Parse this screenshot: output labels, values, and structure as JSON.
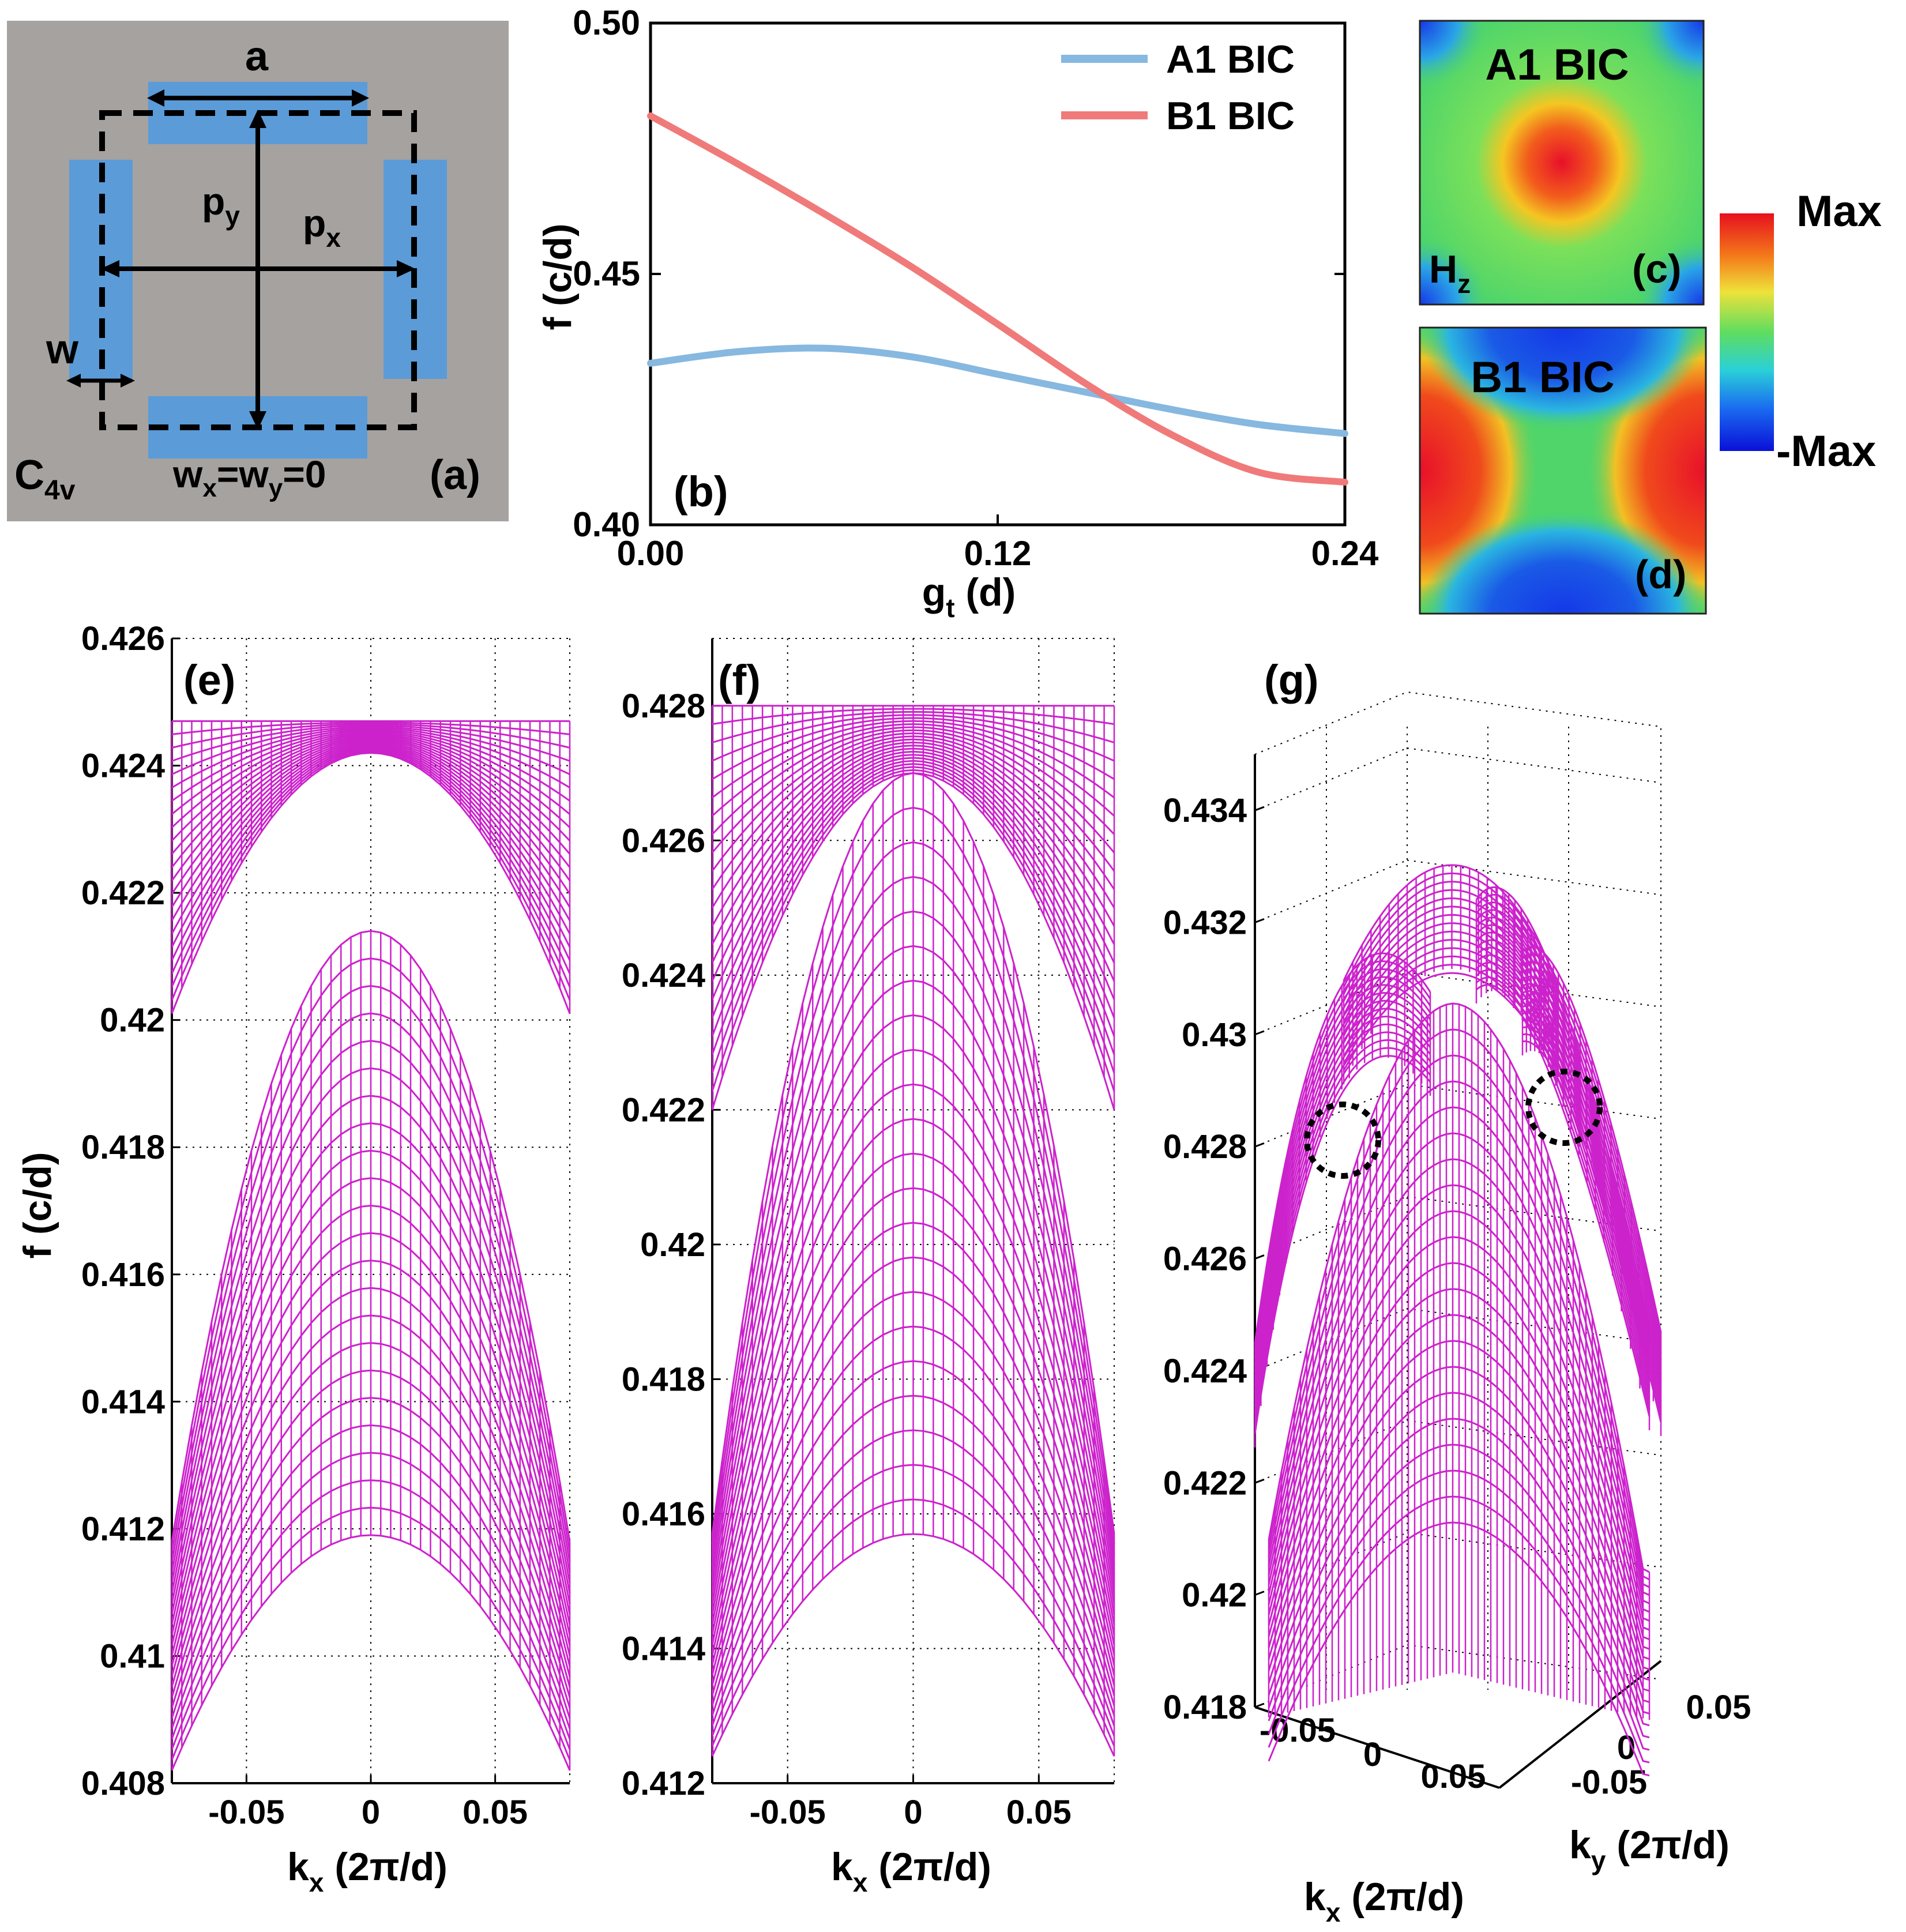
{
  "colors": {
    "a1_line": "#86b8e0",
    "b1_line": "#f07a7a",
    "mesh": "#cc22cc",
    "unit_cell_bg": "#a6a2a0",
    "bar": "#5b9bd8",
    "grid": "#000000"
  },
  "panel_a": {
    "label": "(a)",
    "symmetry_main": "C",
    "symmetry_sub": "4v",
    "condition_w1": "w",
    "condition_s1": "x",
    "condition_mid": "=w",
    "condition_s2": "y",
    "condition_end": "=0",
    "dim_a": "a",
    "dim_py_main": "p",
    "dim_py_sub": "y",
    "dim_px_main": "p",
    "dim_px_sub": "x",
    "dim_w": "w"
  },
  "panel_c": {
    "label": "(c)",
    "title": "A1 BIC",
    "field_main": "H",
    "field_sub": "z"
  },
  "panel_d": {
    "label": "(d)",
    "title": "B1 BIC"
  },
  "colorbar": {
    "max_label": "Max",
    "min_label": "-Max"
  },
  "chart_data": [
    {
      "id": "b",
      "type": "line",
      "label": "(b)",
      "xlabel_main": "g",
      "xlabel_sub": "t",
      "xlabel_rest": " (d)",
      "ylabel": "f (c/d)",
      "xlim": [
        0,
        0.24
      ],
      "ylim": [
        0.4,
        0.5
      ],
      "xticks": [
        "0.00",
        "0.12",
        "0.24"
      ],
      "yticks": [
        "0.40",
        "0.45",
        "0.50"
      ],
      "legend": "top-right",
      "series": [
        {
          "name": "A1 BIC",
          "color": "#86b8e0",
          "x": [
            0,
            0.03,
            0.06,
            0.09,
            0.12,
            0.15,
            0.18,
            0.21,
            0.24
          ],
          "y": [
            0.4322,
            0.4345,
            0.4352,
            0.4335,
            0.43,
            0.4265,
            0.423,
            0.42,
            0.4182
          ]
        },
        {
          "name": "B1 BIC",
          "color": "#f07a7a",
          "x": [
            0,
            0.03,
            0.06,
            0.09,
            0.12,
            0.15,
            0.18,
            0.21,
            0.24
          ],
          "y": [
            0.4815,
            0.472,
            0.462,
            0.4515,
            0.44,
            0.4283,
            0.418,
            0.4105,
            0.4085
          ]
        }
      ]
    },
    {
      "id": "e",
      "type": "surface",
      "label": "(e)",
      "xlabel_main": "k",
      "xlabel_sub": "x",
      "xlabel_rest": " (2π/d)",
      "ylabel": "f (c/d)",
      "xlim": [
        -0.08,
        0.08
      ],
      "ylim": [
        0.408,
        0.426
      ],
      "xticks": [
        "-0.05",
        "0",
        "0.05"
      ],
      "yticks": [
        "0.408",
        "0.41",
        "0.412",
        "0.414",
        "0.416",
        "0.418",
        "0.42",
        "0.422",
        "0.424",
        "0.426"
      ],
      "bands": [
        {
          "name": "lower",
          "center_top": 0.4214,
          "center_bottom": 0.4119,
          "edge_top": 0.4118,
          "edge_bottom": 0.4082
        },
        {
          "name": "upper",
          "center_top": 0.4247,
          "center_bottom": 0.4242,
          "edge_top": 0.4247,
          "edge_bottom": 0.4201
        }
      ]
    },
    {
      "id": "f",
      "type": "surface",
      "label": "(f)",
      "xlabel_main": "k",
      "xlabel_sub": "x",
      "xlabel_rest": " (2π/d)",
      "ylabel": "",
      "xlim": [
        -0.08,
        0.08
      ],
      "ylim": [
        0.412,
        0.429
      ],
      "xticks": [
        "-0.05",
        "0",
        "0.05"
      ],
      "yticks": [
        "0.412",
        "0.414",
        "0.416",
        "0.418",
        "0.42",
        "0.422",
        "0.424",
        "0.426",
        "0.428"
      ],
      "bands": [
        {
          "name": "lower",
          "center_top": 0.427,
          "center_bottom": 0.4157,
          "edge_top": 0.4157,
          "edge_bottom": 0.4124
        },
        {
          "name": "upper",
          "center_top": 0.428,
          "center_bottom": 0.427,
          "edge_top": 0.428,
          "edge_bottom": 0.422
        }
      ]
    },
    {
      "id": "g",
      "type": "surface3d",
      "label": "(g)",
      "xlabel_main": "k",
      "xlabel_sub": "x",
      "xlabel_rest": " (2π/d)",
      "ylabel_main": "k",
      "ylabel_sub": "y",
      "ylabel_rest": " (2π/d)",
      "zlim": [
        0.418,
        0.435
      ],
      "zticks": [
        "0.418",
        "0.42",
        "0.422",
        "0.424",
        "0.426",
        "0.428",
        "0.43",
        "0.432",
        "0.434"
      ],
      "kxticks": [
        "-0.05",
        "0",
        "0.05"
      ],
      "kyticks": [
        "0.05",
        "0",
        "-0.05"
      ]
    }
  ]
}
